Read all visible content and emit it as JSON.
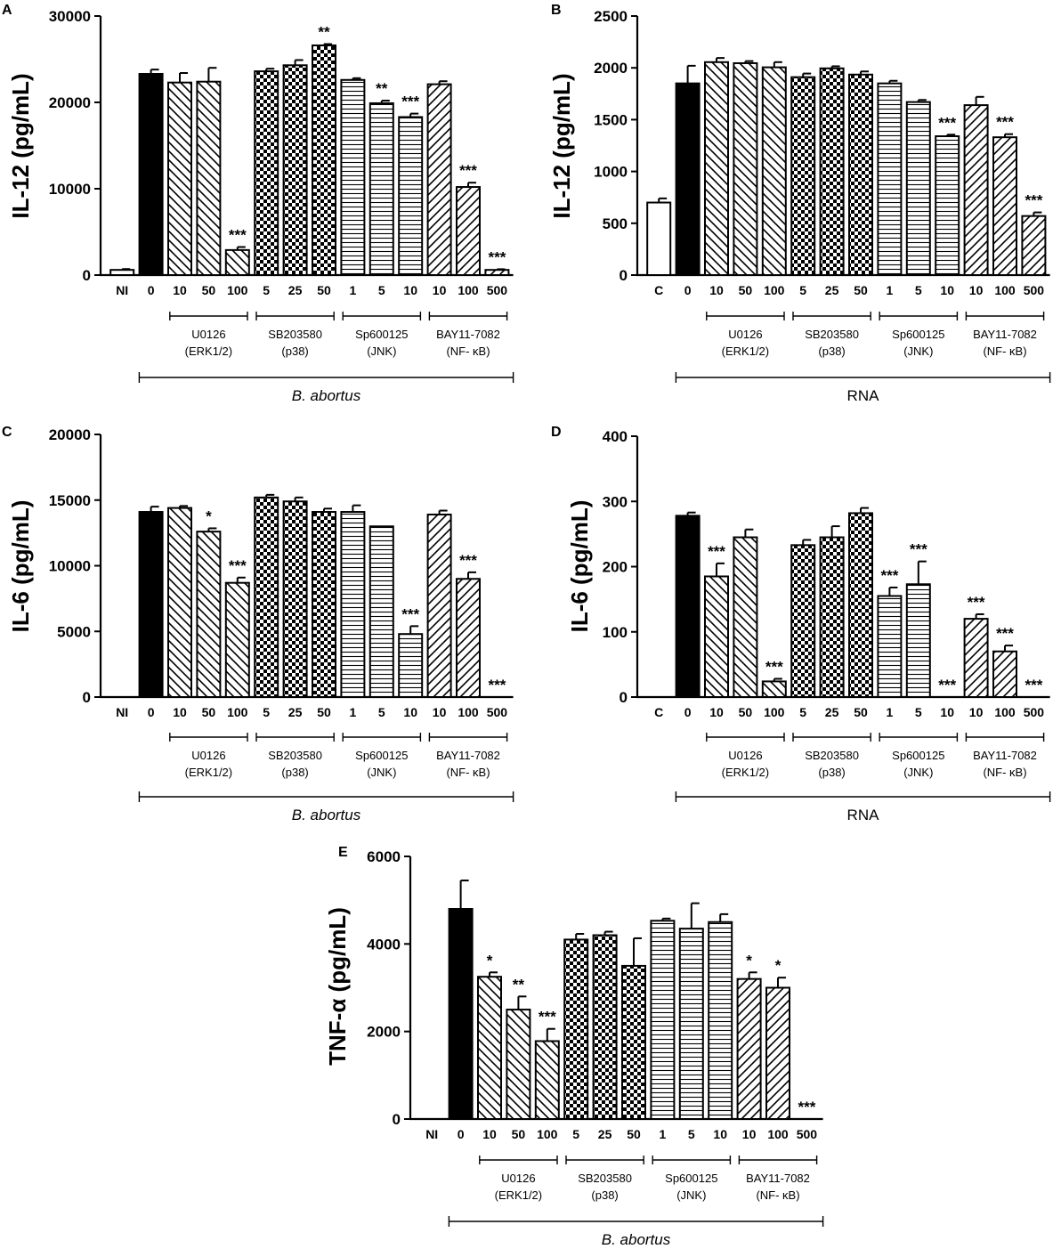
{
  "colors": {
    "ink": "#000000",
    "paper": "#ffffff"
  },
  "chart_data": [
    {
      "type": "bar",
      "panel": "A",
      "ylabel": "IL-12 (pg/mL)",
      "ylim": [
        0,
        30000
      ],
      "yticks": [
        0,
        10000,
        20000,
        30000
      ],
      "categories": [
        "NI",
        "0",
        "10",
        "50",
        "100",
        "5",
        "25",
        "50",
        "1",
        "5",
        "10",
        "10",
        "100",
        "500"
      ],
      "patterns": [
        "white",
        "black",
        "back",
        "back",
        "back",
        "check",
        "check",
        "check",
        "hline",
        "hline",
        "hline",
        "fwd",
        "fwd",
        "fwd"
      ],
      "values": [
        600,
        23300,
        22300,
        22400,
        2900,
        23600,
        24300,
        26600,
        22600,
        19900,
        18300,
        22100,
        10200,
        600
      ],
      "errors": [
        100,
        500,
        1100,
        1600,
        350,
        300,
        600,
        150,
        200,
        300,
        400,
        350,
        500,
        80
      ],
      "significance": [
        "",
        "",
        "",
        "",
        "***",
        "",
        "",
        "**",
        "",
        "**",
        "***",
        "",
        "***",
        "***"
      ],
      "groups": [
        {
          "name": "U0126",
          "target": "(ERK1/2)",
          "from": 2,
          "to": 4
        },
        {
          "name": "SB203580",
          "target": "(p38)",
          "from": 5,
          "to": 7
        },
        {
          "name": "Sp600125",
          "target": "(JNK)",
          "from": 8,
          "to": 10
        },
        {
          "name": "BAY11-7082",
          "target": "(NF- κB)",
          "from": 11,
          "to": 13
        }
      ],
      "condition": {
        "label": "B. abortus",
        "italic": true,
        "from": 1,
        "to": 13
      }
    },
    {
      "type": "bar",
      "panel": "B",
      "ylabel": "IL-12 (pg/mL)",
      "ylim": [
        0,
        2500
      ],
      "yticks": [
        0,
        500,
        1000,
        1500,
        2000,
        2500
      ],
      "categories": [
        "C",
        "0",
        "10",
        "50",
        "100",
        "5",
        "25",
        "50",
        "1",
        "5",
        "10",
        "10",
        "100",
        "500"
      ],
      "patterns": [
        "white",
        "black",
        "back",
        "back",
        "back",
        "check",
        "check",
        "check",
        "hline",
        "hline",
        "hline",
        "fwd",
        "fwd",
        "fwd"
      ],
      "values": [
        700,
        1850,
        2055,
        2045,
        2005,
        1910,
        1995,
        1935,
        1850,
        1670,
        1340,
        1640,
        1330,
        570
      ],
      "errors": [
        40,
        170,
        40,
        20,
        50,
        35,
        20,
        30,
        25,
        20,
        15,
        80,
        30,
        35
      ],
      "significance": [
        "",
        "",
        "",
        "",
        "",
        "",
        "",
        "",
        "",
        "",
        "***",
        "",
        "***",
        "***"
      ],
      "groups": [
        {
          "name": "U0126",
          "target": "(ERK1/2)",
          "from": 2,
          "to": 4
        },
        {
          "name": "SB203580",
          "target": "(p38)",
          "from": 5,
          "to": 7
        },
        {
          "name": "Sp600125",
          "target": "(JNK)",
          "from": 8,
          "to": 10
        },
        {
          "name": "BAY11-7082",
          "target": "(NF- κB)",
          "from": 11,
          "to": 13
        }
      ],
      "condition": {
        "label": "RNA",
        "italic": false,
        "from": 1,
        "to": 13
      }
    },
    {
      "type": "bar",
      "panel": "C",
      "ylabel": "IL-6 (pg/mL)",
      "ylim": [
        0,
        20000
      ],
      "yticks": [
        0,
        5000,
        10000,
        15000,
        20000
      ],
      "categories": [
        "NI",
        "0",
        "10",
        "50",
        "100",
        "5",
        "25",
        "50",
        "1",
        "5",
        "10",
        "10",
        "100",
        "500"
      ],
      "patterns": [
        "white",
        "black",
        "back",
        "back",
        "back",
        "check",
        "check",
        "check",
        "hline",
        "hline",
        "hline",
        "fwd",
        "fwd",
        "fwd"
      ],
      "values": [
        0,
        14100,
        14400,
        12600,
        8700,
        15200,
        14900,
        14100,
        14100,
        13000,
        4800,
        13900,
        9000,
        0
      ],
      "errors": [
        0,
        400,
        150,
        250,
        400,
        200,
        300,
        250,
        500,
        0,
        600,
        300,
        500,
        0
      ],
      "significance": [
        "",
        "",
        "",
        "*",
        "***",
        "",
        "",
        "",
        "",
        "",
        "***",
        "",
        "***",
        "***"
      ],
      "groups": [
        {
          "name": "U0126",
          "target": "(ERK1/2)",
          "from": 2,
          "to": 4
        },
        {
          "name": "SB203580",
          "target": "(p38)",
          "from": 5,
          "to": 7
        },
        {
          "name": "Sp600125",
          "target": "(JNK)",
          "from": 8,
          "to": 10
        },
        {
          "name": "BAY11-7082",
          "target": "(NF- κB)",
          "from": 11,
          "to": 13
        }
      ],
      "condition": {
        "label": "B. abortus",
        "italic": true,
        "from": 1,
        "to": 13
      }
    },
    {
      "type": "bar",
      "panel": "D",
      "ylabel": "IL-6 (pg/mL)",
      "ylim": [
        0,
        400
      ],
      "yticks": [
        0,
        100,
        200,
        300,
        400
      ],
      "categories": [
        "C",
        "0",
        "10",
        "50",
        "100",
        "5",
        "25",
        "50",
        "1",
        "5",
        "10",
        "10",
        "100",
        "500"
      ],
      "patterns": [
        "white",
        "black",
        "back",
        "back",
        "back",
        "check",
        "check",
        "check",
        "hline",
        "hline",
        "hline",
        "fwd",
        "fwd",
        "fwd"
      ],
      "values": [
        0,
        278,
        185,
        245,
        24,
        233,
        245,
        282,
        155,
        173,
        0,
        120,
        70,
        0
      ],
      "errors": [
        0,
        5,
        20,
        12,
        4,
        8,
        17,
        8,
        13,
        35,
        0,
        7,
        9,
        0
      ],
      "significance": [
        "",
        "",
        "***",
        "",
        "***",
        "",
        "",
        "",
        "***",
        "***",
        "***",
        "***",
        "***",
        "***"
      ],
      "groups": [
        {
          "name": "U0126",
          "target": "(ERK1/2)",
          "from": 2,
          "to": 4
        },
        {
          "name": "SB203580",
          "target": "(p38)",
          "from": 5,
          "to": 7
        },
        {
          "name": "Sp600125",
          "target": "(JNK)",
          "from": 8,
          "to": 10
        },
        {
          "name": "BAY11-7082",
          "target": "(NF- κB)",
          "from": 11,
          "to": 13
        }
      ],
      "condition": {
        "label": "RNA",
        "italic": false,
        "from": 1,
        "to": 13
      }
    },
    {
      "type": "bar",
      "panel": "E",
      "ylabel": "TNF-α (pg/mL)",
      "ylim": [
        0,
        6000
      ],
      "yticks": [
        0,
        2000,
        4000,
        6000
      ],
      "categories": [
        "NI",
        "0",
        "10",
        "50",
        "100",
        "5",
        "25",
        "50",
        "1",
        "5",
        "10",
        "10",
        "100",
        "500"
      ],
      "patterns": [
        "white",
        "black",
        "back",
        "back",
        "back",
        "check",
        "check",
        "check",
        "hline",
        "hline",
        "hline",
        "fwd",
        "fwd",
        "fwd"
      ],
      "values": [
        0,
        4800,
        3250,
        2500,
        1780,
        4100,
        4200,
        3500,
        4530,
        4350,
        4500,
        3200,
        3000,
        0
      ],
      "errors": [
        0,
        650,
        100,
        300,
        280,
        130,
        80,
        630,
        50,
        580,
        180,
        150,
        230,
        0
      ],
      "significance": [
        "",
        "",
        "*",
        "**",
        "***",
        "",
        "",
        "",
        "",
        "",
        "",
        "*",
        "*",
        "***"
      ],
      "groups": [
        {
          "name": "U0126",
          "target": "(ERK1/2)",
          "from": 2,
          "to": 4
        },
        {
          "name": "SB203580",
          "target": "(p38)",
          "from": 5,
          "to": 7
        },
        {
          "name": "Sp600125",
          "target": "(JNK)",
          "from": 8,
          "to": 10
        },
        {
          "name": "BAY11-7082",
          "target": "(NF- κB)",
          "from": 11,
          "to": 13
        }
      ],
      "condition": {
        "label": "B. abortus",
        "italic": true,
        "from": 1,
        "to": 13
      }
    }
  ]
}
